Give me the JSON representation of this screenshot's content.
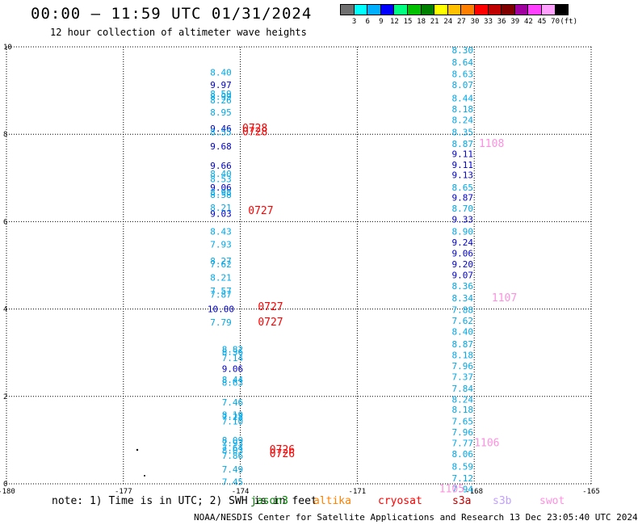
{
  "title": "00:00 — 11:59 UTC 01/31/2024",
  "subtitle": "12 hour collection of altimeter wave heights",
  "colorbar": {
    "colors": [
      "#707070",
      "#00ffff",
      "#00b0ff",
      "#0000ff",
      "#00ff80",
      "#00c000",
      "#008000",
      "#ffff00",
      "#ffc000",
      "#ff8000",
      "#ff0000",
      "#c00000",
      "#800000",
      "#a000a0",
      "#ff40ff",
      "#ffa0ff",
      "#000000"
    ],
    "labels": [
      "3",
      "6",
      "9",
      "12",
      "15",
      "18",
      "21",
      "24",
      "27",
      "30",
      "33",
      "36",
      "39",
      "42",
      "45",
      "70",
      "(ft)"
    ]
  },
  "axes": {
    "x_ticks": [
      "-180",
      "-177",
      "-174",
      "-171",
      "-168",
      "-165"
    ],
    "y_ticks": [
      "0",
      "2",
      "4",
      "6",
      "8",
      "10"
    ],
    "xlim": [
      -180,
      -165
    ],
    "ylim": [
      0,
      10
    ]
  },
  "tracks": [
    {
      "lon": -174.5,
      "points": [
        {
          "lat": 9.42,
          "v": "8.40"
        },
        {
          "lat": 9.13,
          "v": "9.97"
        },
        {
          "lat": 8.93,
          "v": "8.59"
        },
        {
          "lat": 8.86,
          "v": "8.99"
        },
        {
          "lat": 8.78,
          "v": "8.26"
        },
        {
          "lat": 8.5,
          "v": "8.95"
        },
        {
          "lat": 8.13,
          "v": "9.46"
        },
        {
          "lat": 8.05,
          "v": "8.55"
        },
        {
          "lat": 7.73,
          "v": "9.68"
        },
        {
          "lat": 7.28,
          "v": "9.66"
        },
        {
          "lat": 7.1,
          "v": "8.40"
        },
        {
          "lat": 6.98,
          "v": "8.53"
        },
        {
          "lat": 6.78,
          "v": "9.06"
        },
        {
          "lat": 6.67,
          "v": "8.98"
        },
        {
          "lat": 6.62,
          "v": "8.58"
        },
        {
          "lat": 6.32,
          "v": "8.21"
        },
        {
          "lat": 6.18,
          "v": "9.03"
        },
        {
          "lat": 5.78,
          "v": "8.43"
        },
        {
          "lat": 5.48,
          "v": "7.93"
        },
        {
          "lat": 5.1,
          "v": "8.27"
        },
        {
          "lat": 5.03,
          "v": "7.62"
        },
        {
          "lat": 4.72,
          "v": "8.21"
        },
        {
          "lat": 4.42,
          "v": "7.57"
        },
        {
          "lat": 4.33,
          "v": "7.87"
        },
        {
          "lat": 4.0,
          "v": "10.00"
        },
        {
          "lat": 3.7,
          "v": "7.79"
        }
      ]
    },
    {
      "lon": -174.2,
      "points": [
        {
          "lat": 3.08,
          "v": "8.82"
        },
        {
          "lat": 3.02,
          "v": "8.36"
        },
        {
          "lat": 2.88,
          "v": "7.14"
        },
        {
          "lat": 2.63,
          "v": "9.06"
        },
        {
          "lat": 2.38,
          "v": "8.44"
        },
        {
          "lat": 2.32,
          "v": "8.63"
        },
        {
          "lat": 1.87,
          "v": "7.46"
        },
        {
          "lat": 1.58,
          "v": "8.19"
        },
        {
          "lat": 1.53,
          "v": "7.28"
        },
        {
          "lat": 1.43,
          "v": "7.10"
        },
        {
          "lat": 1.0,
          "v": "8.09"
        },
        {
          "lat": 0.93,
          "v": "7.93"
        },
        {
          "lat": 0.82,
          "v": "7.64"
        },
        {
          "lat": 0.77,
          "v": "8.03"
        },
        {
          "lat": 0.65,
          "v": "7.86"
        },
        {
          "lat": 0.33,
          "v": "7.49"
        },
        {
          "lat": 0.05,
          "v": "7.45"
        }
      ]
    },
    {
      "lon": -168.3,
      "points": [
        {
          "lat": 9.93,
          "v": "8.30"
        },
        {
          "lat": 9.65,
          "v": "8.64"
        },
        {
          "lat": 9.38,
          "v": "8.63"
        },
        {
          "lat": 9.13,
          "v": "8.07"
        },
        {
          "lat": 8.83,
          "v": "8.44"
        },
        {
          "lat": 8.58,
          "v": "8.18"
        },
        {
          "lat": 8.33,
          "v": "8.24"
        },
        {
          "lat": 8.05,
          "v": "8.35"
        },
        {
          "lat": 7.78,
          "v": "8.87"
        },
        {
          "lat": 7.55,
          "v": "9.11"
        },
        {
          "lat": 7.3,
          "v": "9.11"
        },
        {
          "lat": 7.07,
          "v": "9.13"
        },
        {
          "lat": 6.78,
          "v": "8.65"
        },
        {
          "lat": 6.55,
          "v": "9.87"
        },
        {
          "lat": 6.3,
          "v": "8.70"
        },
        {
          "lat": 6.05,
          "v": "9.33"
        },
        {
          "lat": 5.78,
          "v": "8.90"
        },
        {
          "lat": 5.53,
          "v": "9.24"
        },
        {
          "lat": 5.28,
          "v": "9.06"
        },
        {
          "lat": 5.03,
          "v": "9.20"
        },
        {
          "lat": 4.78,
          "v": "9.07"
        },
        {
          "lat": 4.53,
          "v": "8.36"
        },
        {
          "lat": 4.25,
          "v": "8.34"
        },
        {
          "lat": 3.98,
          "v": "7.88"
        },
        {
          "lat": 3.73,
          "v": "7.62"
        },
        {
          "lat": 3.48,
          "v": "8.40"
        },
        {
          "lat": 3.2,
          "v": "8.87"
        },
        {
          "lat": 2.95,
          "v": "8.18"
        },
        {
          "lat": 2.7,
          "v": "7.96"
        },
        {
          "lat": 2.45,
          "v": "7.37"
        },
        {
          "lat": 2.18,
          "v": "7.84"
        },
        {
          "lat": 1.93,
          "v": "8.24"
        },
        {
          "lat": 1.7,
          "v": "8.18"
        },
        {
          "lat": 1.43,
          "v": "7.65"
        },
        {
          "lat": 1.18,
          "v": "7.96"
        },
        {
          "lat": 0.93,
          "v": "7.77"
        },
        {
          "lat": 0.68,
          "v": "8.06"
        },
        {
          "lat": 0.4,
          "v": "8.59"
        },
        {
          "lat": 0.13,
          "v": "7.12"
        },
        {
          "lat": -0.12,
          "v": "7.94"
        }
      ]
    }
  ],
  "time_tags": [
    {
      "lon": -173.95,
      "lat": 8.13,
      "t": "0728",
      "color": "#ff0000"
    },
    {
      "lon": -173.95,
      "lat": 8.05,
      "t": "0728",
      "color": "#ff0000"
    },
    {
      "lon": -173.8,
      "lat": 6.25,
      "t": "0727",
      "color": "#ff0000"
    },
    {
      "lon": -173.55,
      "lat": 4.05,
      "t": "0727",
      "color": "#ff0000"
    },
    {
      "lon": -173.55,
      "lat": 3.7,
      "t": "0727",
      "color": "#ff0000"
    },
    {
      "lon": -173.25,
      "lat": 0.78,
      "t": "0726",
      "color": "#ff0000"
    },
    {
      "lon": -173.25,
      "lat": 0.68,
      "t": "0726",
      "color": "#ff0000"
    },
    {
      "lon": -167.88,
      "lat": 7.78,
      "t": "1108",
      "color": "#ff90e0"
    },
    {
      "lon": -167.55,
      "lat": 4.25,
      "t": "1107",
      "color": "#ff90e0"
    },
    {
      "lon": -168.0,
      "lat": 0.93,
      "t": "1106",
      "color": "#ff90e0"
    },
    {
      "lon": -168.9,
      "lat": -0.12,
      "t": "1105",
      "color": "#ff90e0"
    }
  ],
  "note": "note: 1) Time is in UTC; 2) SWH is in feet",
  "satellites": [
    {
      "name": "jason3",
      "color": "#008000"
    },
    {
      "name": "altika",
      "color": "#ff8000"
    },
    {
      "name": "cryosat",
      "color": "#ff0000"
    },
    {
      "name": "s3a",
      "color": "#c00000"
    },
    {
      "name": "s3b",
      "color": "#c0a0ff"
    },
    {
      "name": "swot",
      "color": "#ff90e0"
    }
  ],
  "footer": "NOAA/NESDIS Center for Satellite Applications and Research   13 Dec 23:05:40 UTC 2024"
}
